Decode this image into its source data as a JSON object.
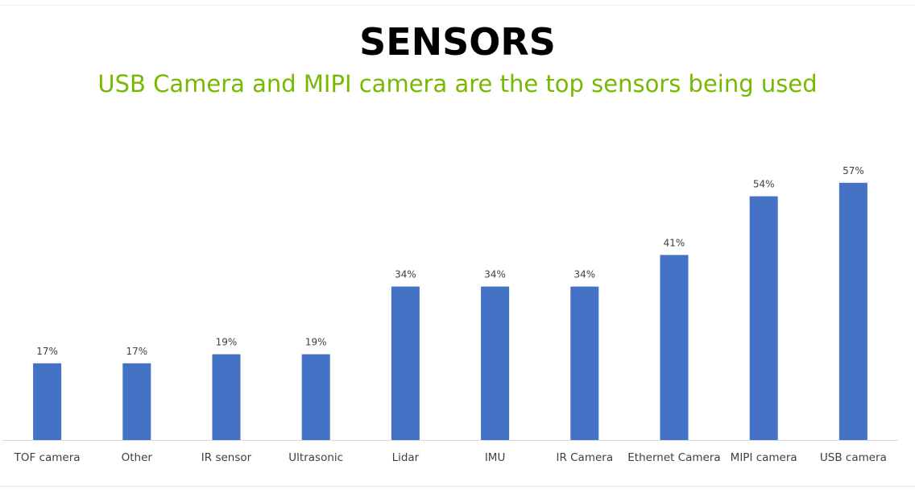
{
  "header": {
    "title": "SENSORS",
    "subtitle": "USB Camera and MIPI camera are the top sensors being used"
  },
  "colors": {
    "bar": "#4472c4",
    "subtitle": "#76b900",
    "axis": "#d9d9d9",
    "label": "#404040"
  },
  "chart_data": {
    "type": "bar",
    "title": "",
    "xlabel": "",
    "ylabel": "",
    "ylim": [
      0,
      60
    ],
    "grid": false,
    "categories": [
      "TOF camera",
      "Other",
      "IR sensor",
      "Ultrasonic",
      "Lidar",
      "IMU",
      "IR Camera",
      "Ethernet Camera",
      "MIPI camera",
      "USB camera"
    ],
    "values": [
      17,
      17,
      19,
      19,
      34,
      34,
      34,
      41,
      54,
      57
    ],
    "value_labels": [
      "17%",
      "17%",
      "19%",
      "19%",
      "34%",
      "34%",
      "34%",
      "41%",
      "54%",
      "57%"
    ]
  }
}
